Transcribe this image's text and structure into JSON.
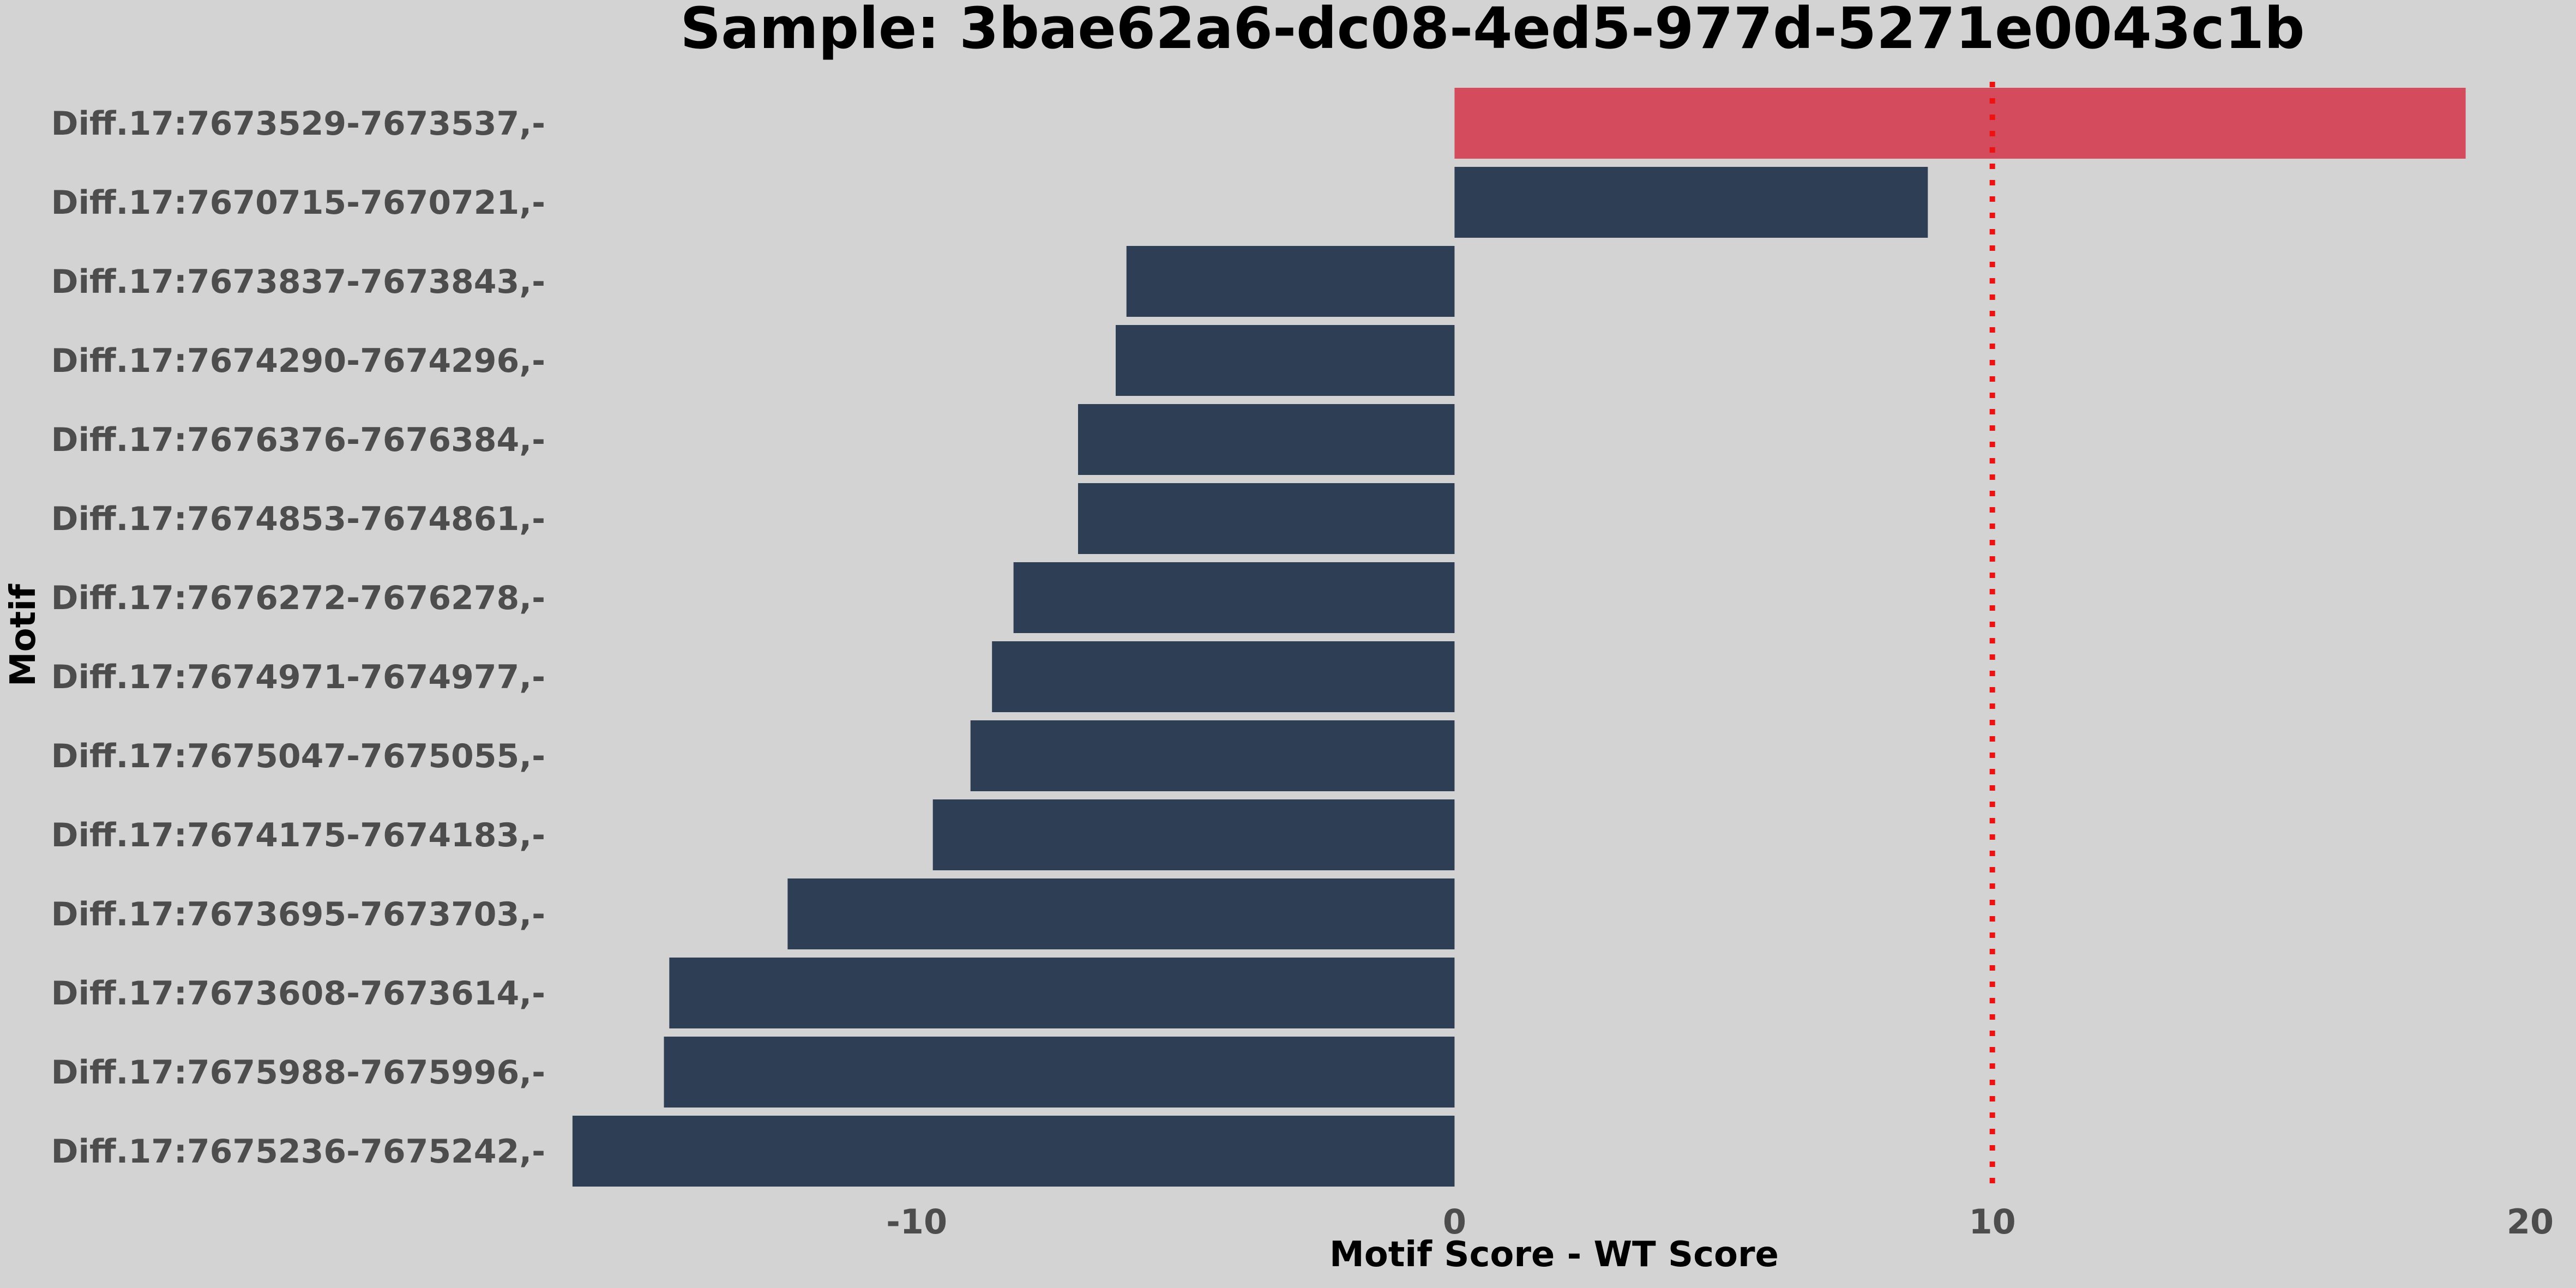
{
  "chart_data": {
    "type": "bar",
    "orientation": "horizontal",
    "title": "Sample: 3bae62a6-dc08-4ed5-977d-5271e0043c1b",
    "xlabel": "Motif Score - WT Score",
    "ylabel": "Motif",
    "xlim": [
      -16.5,
      20
    ],
    "xticks": [
      -10,
      0,
      10,
      20
    ],
    "threshold": 10,
    "grid": false,
    "colors": {
      "background": "#d3d3d3",
      "above_threshold": "#d44b5e",
      "below_threshold": "#2d3e55",
      "threshold_line": "#ee1111"
    },
    "categories": [
      "Diff.17:7673529-7673537,-",
      "Diff.17:7670715-7670721,-",
      "Diff.17:7673837-7673843,-",
      "Diff.17:7674290-7674296,-",
      "Diff.17:7676376-7676384,-",
      "Diff.17:7674853-7674861,-",
      "Diff.17:7676272-7676278,-",
      "Diff.17:7674971-7674977,-",
      "Diff.17:7675047-7675055,-",
      "Diff.17:7674175-7674183,-",
      "Diff.17:7673695-7673703,-",
      "Diff.17:7673608-7673614,-",
      "Diff.17:7675988-7675996,-",
      "Diff.17:7675236-7675242,-"
    ],
    "values": [
      18.8,
      8.8,
      -6.1,
      -6.3,
      -7.0,
      -7.0,
      -8.2,
      -8.6,
      -9.0,
      -9.7,
      -12.4,
      -14.6,
      -14.7,
      -16.4
    ]
  }
}
